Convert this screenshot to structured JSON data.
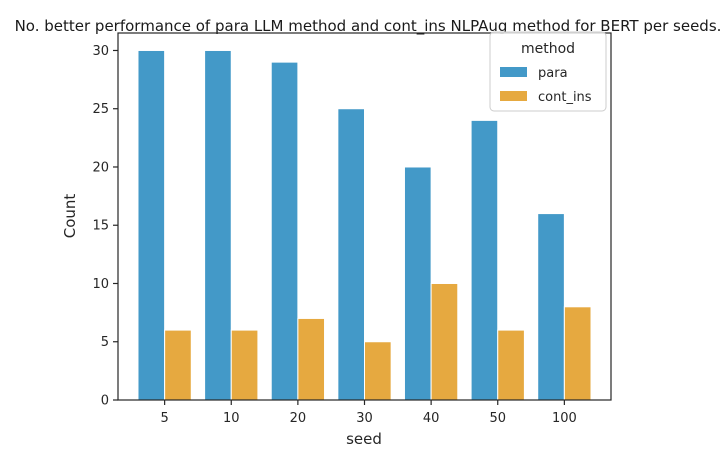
{
  "chart_data": {
    "type": "bar",
    "title": "No. better performance of para LLM method and cont_ins NLPAug method for BERT per seeds.",
    "xlabel": "seed",
    "ylabel": "Count",
    "categories": [
      "5",
      "10",
      "20",
      "30",
      "40",
      "50",
      "100"
    ],
    "series": [
      {
        "name": "para",
        "values": [
          30,
          30,
          29,
          25,
          20,
          24,
          16
        ],
        "color": "#4399c8"
      },
      {
        "name": "cont_ins",
        "values": [
          6,
          6,
          7,
          5,
          10,
          6,
          8
        ],
        "color": "#e6a940"
      }
    ],
    "ylim": [
      0,
      31.5
    ],
    "yticks": [
      0,
      5,
      10,
      15,
      20,
      25,
      30
    ],
    "legend": {
      "title": "method",
      "placement": "top-right"
    },
    "grid": false
  }
}
